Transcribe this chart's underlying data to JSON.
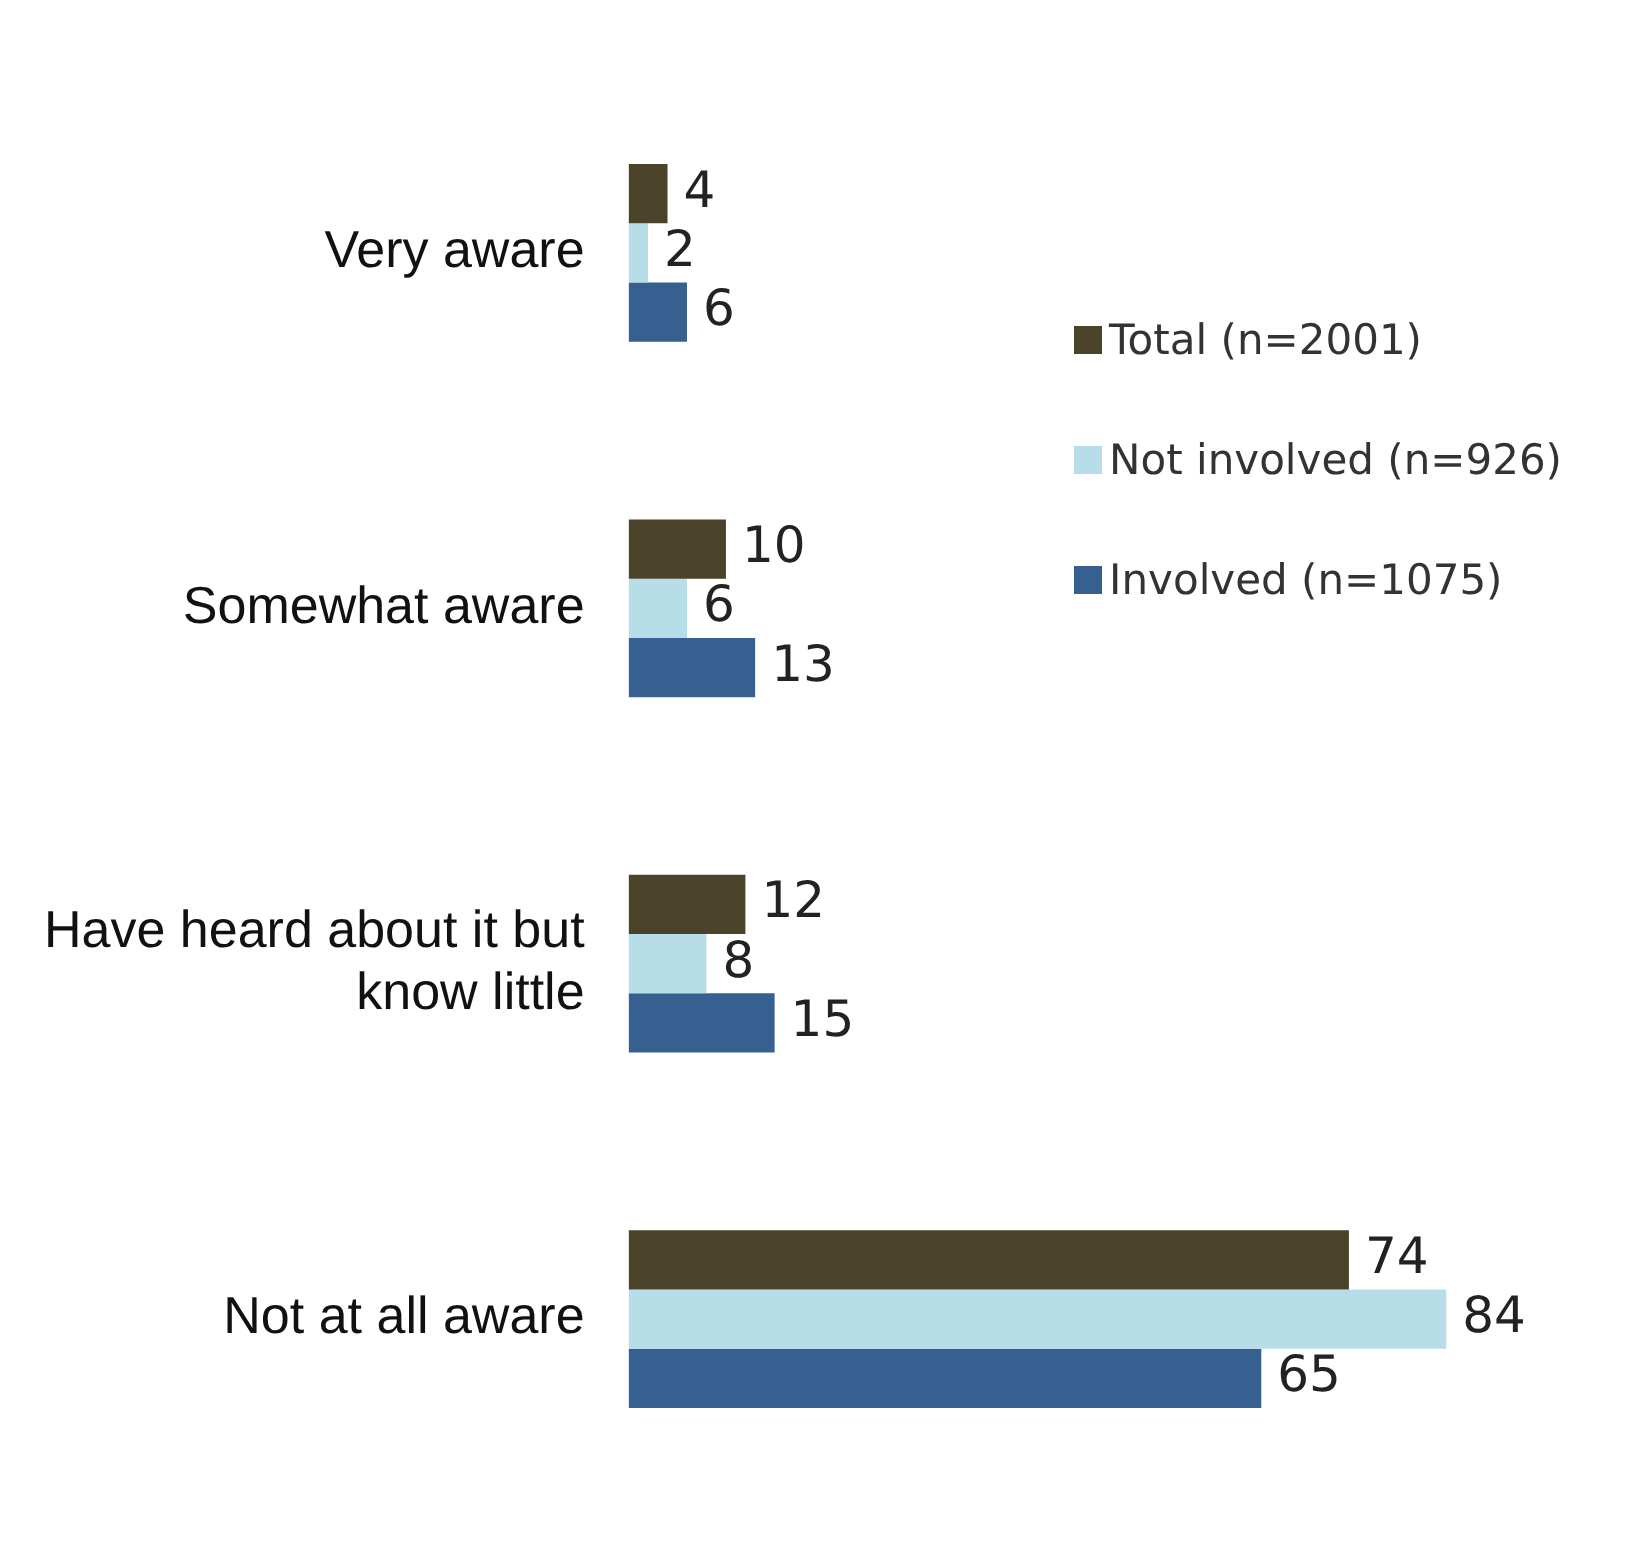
{
  "chart_data": {
    "type": "bar",
    "orientation": "horizontal",
    "categories": [
      "Very aware",
      "Somewhat aware",
      "Have heard about it but know little",
      "Not at all aware"
    ],
    "series": [
      {
        "name": "Total (n=2001)",
        "color": "#4a4229",
        "values": [
          4,
          10,
          12,
          74
        ]
      },
      {
        "name": "Not involved (n=926)",
        "color": "#b7dde8",
        "values": [
          2,
          6,
          8,
          84
        ]
      },
      {
        "name": "Involved (n=1075)",
        "color": "#36608f",
        "values": [
          6,
          13,
          15,
          65
        ]
      }
    ],
    "data_labels": true,
    "legend": "top right"
  }
}
